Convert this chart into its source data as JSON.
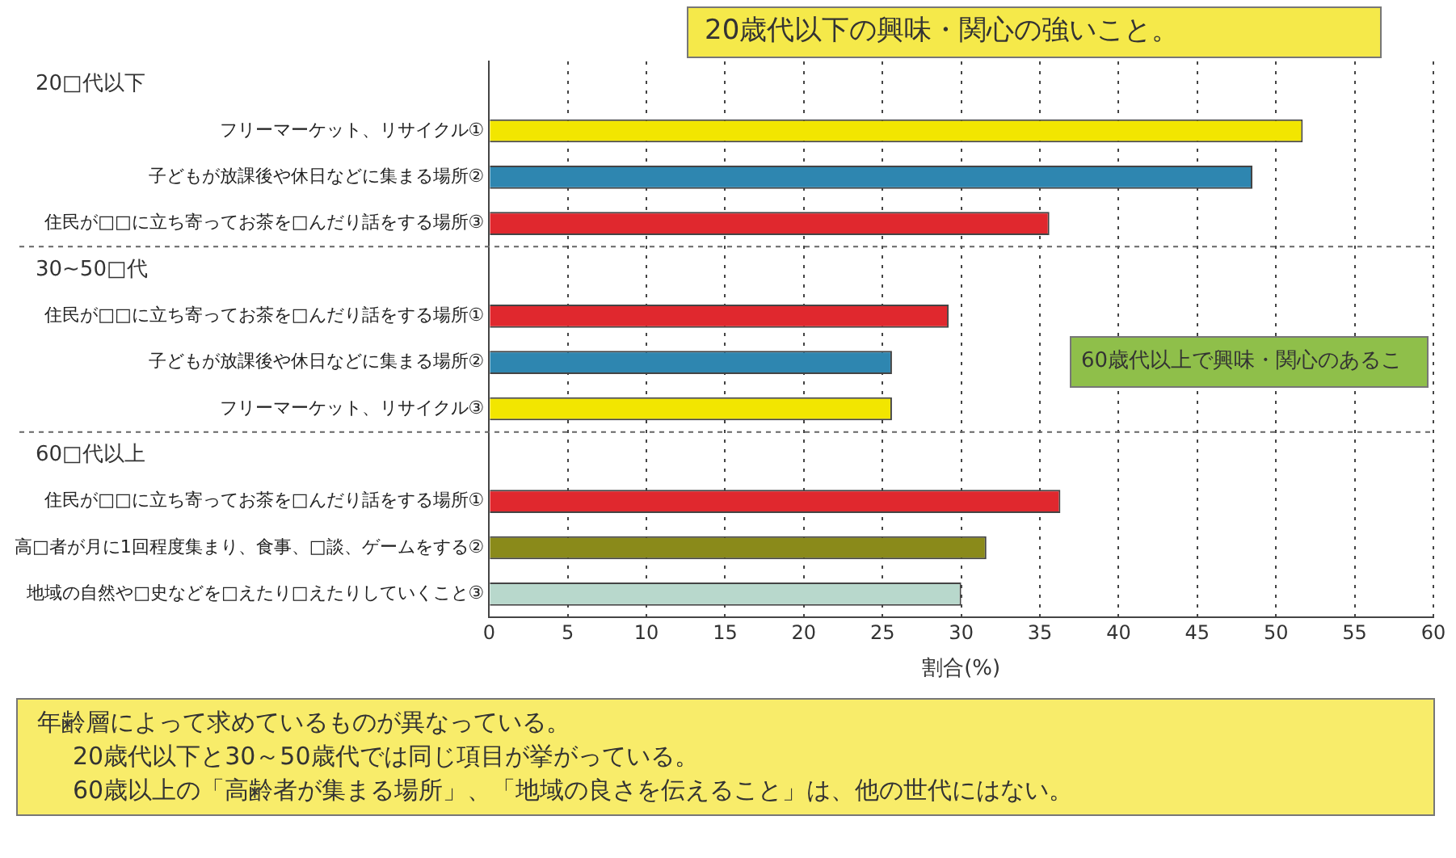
{
  "chart_data": {
    "type": "bar",
    "orientation": "horizontal",
    "xlabel": "割合(%)",
    "categories": [
      null,
      "フリーマーケット、リサイクル①",
      "子どもが放課後や休日などに集まる場所②",
      "住民が□□に立ち寄ってお茶を□んだり話をする場所③",
      null,
      "住民が□□に立ち寄ってお茶を□んだり話をする場所①",
      "子どもが放課後や休日などに集まる場所②",
      "フリーマーケット、リサイクル③",
      null,
      "住民が□□に立ち寄ってお茶を□んだり話をする場所①",
      "高□者が月に1回程度集まり、食事、□談、ゲームをする②",
      "地域の自然や□史などを□えたり□えたりしていくこと③"
    ],
    "values": [
      null,
      51.7,
      48.5,
      35.6,
      null,
      29.2,
      25.6,
      25.6,
      null,
      36.3,
      31.6,
      30.0
    ],
    "colors": [
      "#f2e600",
      "#f2e600",
      "#2e86b0",
      "#e0282e",
      "#e0282e",
      "#e0282e",
      "#2e86b0",
      "#f2e600",
      "#e0282e",
      "#e0282e",
      "#8a8a1a",
      "#b8d8cc"
    ],
    "xlim": [
      0,
      60
    ],
    "xticks": [
      0,
      5,
      10,
      15,
      20,
      25,
      30,
      35,
      40,
      45,
      50,
      55,
      60
    ],
    "grid": "x",
    "legend": false,
    "annotations": [
      "20□代以下",
      "30~50□代",
      "60□代以上",
      "20歳代以下の興味・関心の強いこと。",
      "60歳代以上で興味・関心のあるこ",
      "年齢層によって求めているものが異なっている。",
      "20歳代以下と30～50歳代では同じ項目が挙がっている。",
      "60歳以上の「高齢者が集まる場所」、「地域の良さを伝えること」は、他の世代にはない。"
    ]
  }
}
